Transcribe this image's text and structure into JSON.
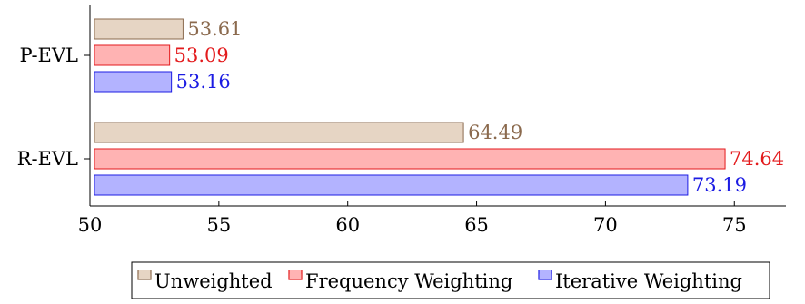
{
  "chart_data": {
    "type": "bar",
    "orientation": "horizontal",
    "categories": [
      "P-EVL",
      "R-EVL"
    ],
    "series": [
      {
        "name": "Unweighted",
        "values": [
          53.61,
          64.49
        ],
        "fill": "#e6d5c4",
        "stroke": "#8b6a4e",
        "label_color": "#8b6a4e"
      },
      {
        "name": "Frequency Weighting",
        "values": [
          53.09,
          74.64
        ],
        "fill": "#ffb3b3",
        "stroke": "#e31a1c",
        "label_color": "#e31a1c"
      },
      {
        "name": "Iterative Weighting",
        "values": [
          53.16,
          73.19
        ],
        "fill": "#b3b3ff",
        "stroke": "#1c1ce3",
        "label_color": "#1c1ce3"
      }
    ],
    "data_labels": [
      [
        "53.61",
        "64.49"
      ],
      [
        "53.09",
        "74.64"
      ],
      [
        "53.16",
        "73.19"
      ]
    ],
    "xlim": [
      50,
      77
    ],
    "xticks": [
      50,
      55,
      60,
      65,
      70,
      75
    ],
    "xtick_labels": [
      "50",
      "55",
      "60",
      "65",
      "70",
      "75"
    ],
    "grid": false,
    "legend_position": "bottom",
    "title": "",
    "xlabel": "",
    "ylabel": ""
  }
}
